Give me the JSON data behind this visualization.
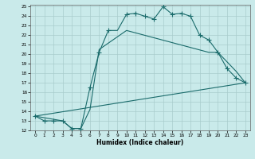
{
  "xlabel": "Humidex (Indice chaleur)",
  "xlim": [
    -0.5,
    23.5
  ],
  "ylim": [
    12,
    25.2
  ],
  "xticks": [
    0,
    1,
    2,
    3,
    4,
    5,
    6,
    7,
    8,
    9,
    10,
    11,
    12,
    13,
    14,
    15,
    16,
    17,
    18,
    19,
    20,
    21,
    22,
    23
  ],
  "yticks": [
    12,
    13,
    14,
    15,
    16,
    17,
    18,
    19,
    20,
    21,
    22,
    23,
    24,
    25
  ],
  "bg_color": "#c9eaea",
  "grid_color": "#a8cccc",
  "line_color": "#1a6b6b",
  "line1_x": [
    0,
    1,
    2,
    3,
    4,
    5,
    6,
    7,
    8,
    9,
    10,
    11,
    12,
    13,
    14,
    15,
    16,
    17,
    18,
    19,
    20,
    21,
    22,
    23
  ],
  "line1_y": [
    13.5,
    13.0,
    13.0,
    13.0,
    12.2,
    12.2,
    16.5,
    20.2,
    22.5,
    22.5,
    24.2,
    24.3,
    24.0,
    23.7,
    25.0,
    24.2,
    24.3,
    24.0,
    22.0,
    21.5,
    20.2,
    18.5,
    17.5,
    17.0
  ],
  "line1_marker_x": [
    0,
    1,
    2,
    3,
    4,
    5,
    6,
    7,
    8,
    10,
    11,
    12,
    13,
    14,
    15,
    16,
    17,
    18,
    19,
    20,
    21,
    22,
    23
  ],
  "line1_marker_y": [
    13.5,
    13.0,
    13.0,
    13.0,
    12.2,
    12.2,
    16.5,
    20.2,
    22.5,
    24.2,
    24.3,
    24.0,
    23.7,
    25.0,
    24.2,
    24.3,
    24.0,
    22.0,
    21.5,
    20.2,
    18.5,
    17.5,
    17.0
  ],
  "line2_x": [
    0,
    3,
    4,
    5,
    6,
    7,
    10,
    19,
    20,
    22,
    23
  ],
  "line2_y": [
    13.5,
    13.0,
    12.2,
    12.2,
    14.2,
    20.5,
    22.5,
    20.2,
    20.2,
    18.2,
    17.0
  ],
  "line3_x": [
    0,
    23
  ],
  "line3_y": [
    13.5,
    17.0
  ]
}
